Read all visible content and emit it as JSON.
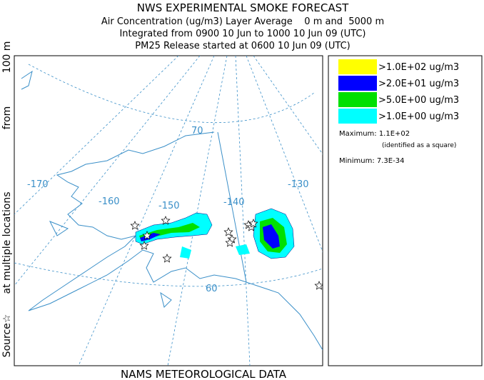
{
  "header": {
    "lines": [
      "NWS EXPERIMENTAL SMOKE FORECAST",
      "Air Concentration (ug/m3) Layer Average    0 m and  5000 m",
      "Integrated from 0900 10 Jun to 1000 10 Jun 09 (UTC)",
      "PM25 Release started at 0600 10 Jun 09 (UTC)"
    ]
  },
  "side_label": [
    "Source☆",
    "at multiple locations",
    "from",
    "100 m"
  ],
  "footer": "NAMS METEOROLOGICAL DATA",
  "legend": {
    "items": [
      {
        "label": ">1.0E+02 ug/m3",
        "color": "#ffff00"
      },
      {
        "label": ">2.0E+01 ug/m3",
        "color": "#0000ff"
      },
      {
        "label": ">5.0E+00 ug/m3",
        "color": "#00e000"
      },
      {
        "label": ">1.0E+00 ug/m3",
        "color": "#00ffff"
      }
    ],
    "maximum": "Maximum: 1.1E+02",
    "note": "(identified as a square)",
    "minimum": "Minimum: 7.3E-34"
  },
  "map": {
    "graticule_labels": [
      "-170",
      "-160",
      "-150",
      "-140",
      "-130",
      "70",
      "60"
    ]
  }
}
